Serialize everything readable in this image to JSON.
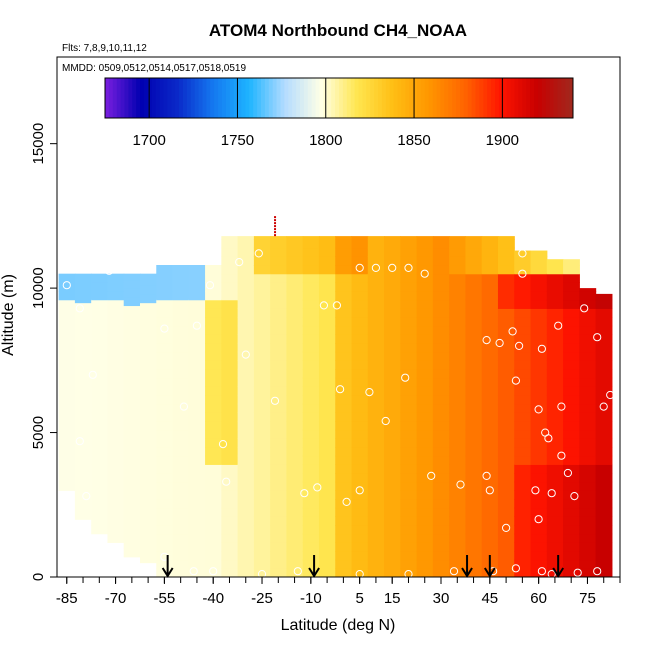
{
  "chart_data": {
    "type": "heatmap",
    "title": "ATOM4 Northbound CH4_NOAA",
    "flights_label": "Flts: 7,8,9,10,11,12",
    "dates_label": "MMDD: 0509,0512,0514,0517,0518,0519",
    "xlabel": "Latitude (deg N)",
    "ylabel": "Altitude (m)",
    "xlim": [
      -88,
      85
    ],
    "ylim": [
      0,
      18000
    ],
    "x_ticks": [
      -85,
      -70,
      -55,
      -40,
      -25,
      -10,
      5,
      15,
      30,
      45,
      60,
      75
    ],
    "y_ticks": [
      0,
      5000,
      10000,
      15000
    ],
    "y_tick_labels": [
      "0",
      "5000",
      "10000",
      "15000"
    ],
    "colorbar": {
      "range": [
        1675,
        1940
      ],
      "ticks": [
        1700,
        1750,
        1800,
        1850,
        1900
      ],
      "tick_labels": [
        "1700",
        "1750",
        "1800",
        "1850",
        "1900"
      ],
      "colors": [
        "#7b1fe0",
        "#0000b0",
        "#0a28c8",
        "#1478f0",
        "#1eb4ff",
        "#b4dcff",
        "#ffffe6",
        "#ffe650",
        "#ffbe14",
        "#ff9600",
        "#ff6400",
        "#ff1400",
        "#c80000",
        "#a0281e"
      ]
    },
    "arrows_lat": [
      -54,
      -9,
      38,
      45,
      66
    ],
    "profile_lats": [
      -85,
      -80,
      -75,
      -70,
      -65,
      -60,
      -55,
      -50,
      -45,
      -40,
      -35,
      -30,
      -25,
      -20,
      -15,
      -10,
      -5,
      0,
      5,
      10,
      15,
      20,
      25,
      30,
      35,
      40,
      45,
      50,
      55,
      60,
      65,
      70,
      75,
      80
    ],
    "profile_top_alt": [
      10500,
      10500,
      10500,
      10500,
      10500,
      10500,
      10800,
      10800,
      10800,
      10800,
      11800,
      11800,
      11800,
      11800,
      11800,
      11800,
      11800,
      11800,
      11800,
      11800,
      11800,
      11800,
      11800,
      11800,
      11800,
      11800,
      11800,
      11800,
      11300,
      11300,
      11000,
      11000,
      10000,
      9800
    ],
    "profile_bottom_alt": [
      3000,
      2000,
      1500,
      1200,
      700,
      500,
      0,
      0,
      0,
      0,
      0,
      0,
      0,
      0,
      0,
      0,
      0,
      0,
      0,
      0,
      0,
      0,
      0,
      0,
      0,
      0,
      0,
      0,
      0,
      0,
      0,
      0,
      0,
      0
    ],
    "sample_points": [
      [
        -85,
        10100
      ],
      [
        -81,
        9300
      ],
      [
        -77,
        7000
      ],
      [
        -81,
        4700
      ],
      [
        -79,
        2800
      ],
      [
        -78,
        1300
      ],
      [
        -72,
        10600
      ],
      [
        -55,
        8600
      ],
      [
        -49,
        5900
      ],
      [
        -45,
        8700
      ],
      [
        -41,
        10100
      ],
      [
        -37,
        4600
      ],
      [
        -36,
        3300
      ],
      [
        -32,
        10900
      ],
      [
        -30,
        7700
      ],
      [
        -26,
        11200
      ],
      [
        -21,
        6100
      ],
      [
        -12,
        2900
      ],
      [
        -8,
        3100
      ],
      [
        -6,
        9400
      ],
      [
        -2,
        9400
      ],
      [
        -1,
        6500
      ],
      [
        1,
        2600
      ],
      [
        5,
        3000
      ],
      [
        5,
        10700
      ],
      [
        8,
        6400
      ],
      [
        10,
        10700
      ],
      [
        13,
        5400
      ],
      [
        15,
        10700
      ],
      [
        19,
        6900
      ],
      [
        20,
        10700
      ],
      [
        25,
        10500
      ],
      [
        27,
        3500
      ],
      [
        36,
        3200
      ],
      [
        44,
        8200
      ],
      [
        44,
        3500
      ],
      [
        45,
        3000
      ],
      [
        48,
        8100
      ],
      [
        50,
        1700
      ],
      [
        52,
        8500
      ],
      [
        53,
        6800
      ],
      [
        54,
        8000
      ],
      [
        55,
        10500
      ],
      [
        55,
        11200
      ],
      [
        59,
        3000
      ],
      [
        60,
        2000
      ],
      [
        60,
        5800
      ],
      [
        61,
        7900
      ],
      [
        62,
        5000
      ],
      [
        63,
        4800
      ],
      [
        64,
        2900
      ],
      [
        66,
        8700
      ],
      [
        67,
        5900
      ],
      [
        67,
        4200
      ],
      [
        69,
        3600
      ],
      [
        71,
        2800
      ],
      [
        74,
        9300
      ],
      [
        78,
        8300
      ],
      [
        80,
        5900
      ],
      [
        82,
        6300
      ],
      [
        -55,
        700
      ],
      [
        -46,
        200
      ],
      [
        -40,
        200
      ],
      [
        -25,
        100
      ],
      [
        -14,
        200
      ],
      [
        5,
        100
      ],
      [
        20,
        100
      ],
      [
        34,
        200
      ],
      [
        46,
        200
      ],
      [
        53,
        300
      ],
      [
        61,
        200
      ],
      [
        64,
        100
      ],
      [
        72,
        150
      ],
      [
        78,
        200
      ]
    ]
  }
}
